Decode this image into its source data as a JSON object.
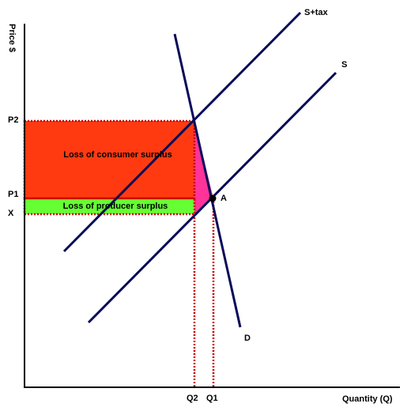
{
  "axes": {
    "y_label": "Price $",
    "x_label": "Quantity (Q)"
  },
  "curves": {
    "supply_tax": "S+tax",
    "supply": "S",
    "demand": "D"
  },
  "prices": {
    "p2": "P2",
    "p1": "P1",
    "x": "X"
  },
  "quantities": {
    "q2": "Q2",
    "q1": "Q1"
  },
  "regions": {
    "consumer": "Loss of consumer surplus",
    "producer": "Loss of producer surplus"
  },
  "point": "A"
}
